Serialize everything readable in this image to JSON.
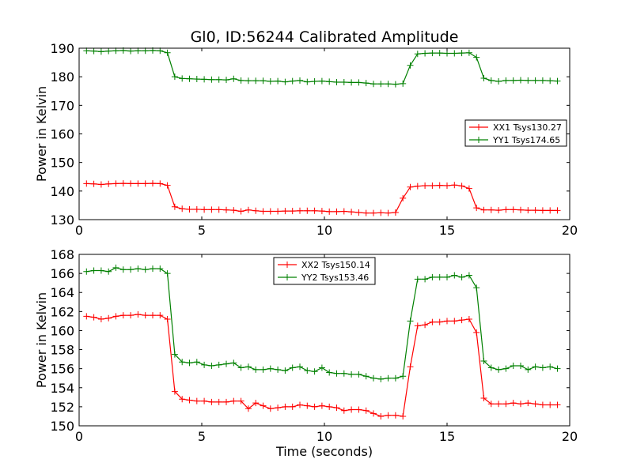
{
  "chart_data": [
    {
      "type": "line",
      "title": "Gl0, ID:56244 Calibrated Amplitude",
      "xlabel": "",
      "ylabel": "Power in Kelvin",
      "xlim": [
        0,
        20
      ],
      "ylim": [
        130,
        190
      ],
      "xticks": [
        0,
        5,
        10,
        15,
        20
      ],
      "yticks": [
        130,
        140,
        150,
        160,
        170,
        180,
        190
      ],
      "grid": false,
      "legend_position": "center-right",
      "series": [
        {
          "name": "XX1 Tsys130.27",
          "color": "#ff0000",
          "marker": "+",
          "x": [
            0.3,
            0.6,
            0.9,
            1.2,
            1.5,
            1.8,
            2.1,
            2.4,
            2.7,
            3.0,
            3.3,
            3.6,
            3.9,
            4.2,
            4.5,
            4.8,
            5.1,
            5.4,
            5.7,
            6.0,
            6.3,
            6.6,
            6.9,
            7.2,
            7.5,
            7.8,
            8.1,
            8.4,
            8.7,
            9.0,
            9.3,
            9.6,
            9.9,
            10.2,
            10.5,
            10.8,
            11.1,
            11.4,
            11.7,
            12.0,
            12.3,
            12.6,
            12.9,
            13.2,
            13.5,
            13.8,
            14.1,
            14.4,
            14.7,
            15.0,
            15.3,
            15.6,
            15.9,
            16.2,
            16.5,
            16.8,
            17.1,
            17.4,
            17.7,
            18.0,
            18.3,
            18.6,
            18.9,
            19.2,
            19.5
          ],
          "y": [
            142.6,
            142.5,
            142.3,
            142.5,
            142.6,
            142.7,
            142.6,
            142.6,
            142.6,
            142.7,
            142.6,
            142.0,
            134.5,
            133.8,
            133.6,
            133.6,
            133.5,
            133.5,
            133.5,
            133.4,
            133.3,
            132.9,
            133.4,
            133.1,
            132.9,
            132.9,
            132.9,
            133.0,
            133.0,
            133.1,
            133.1,
            133.1,
            133.0,
            132.8,
            132.8,
            132.9,
            132.7,
            132.5,
            132.3,
            132.3,
            132.4,
            132.3,
            132.5,
            137.5,
            141.4,
            141.7,
            141.9,
            141.9,
            142.0,
            141.9,
            142.1,
            141.8,
            140.9,
            134.1,
            133.4,
            133.4,
            133.3,
            133.5,
            133.5,
            133.4,
            133.3,
            133.3,
            133.2,
            133.2,
            133.2
          ]
        },
        {
          "name": "YY1 Tsys174.65",
          "color": "#008000",
          "marker": "+",
          "x": [
            0.3,
            0.6,
            0.9,
            1.2,
            1.5,
            1.8,
            2.1,
            2.4,
            2.7,
            3.0,
            3.3,
            3.6,
            3.9,
            4.2,
            4.5,
            4.8,
            5.1,
            5.4,
            5.7,
            6.0,
            6.3,
            6.6,
            6.9,
            7.2,
            7.5,
            7.8,
            8.1,
            8.4,
            8.7,
            9.0,
            9.3,
            9.6,
            9.9,
            10.2,
            10.5,
            10.8,
            11.1,
            11.4,
            11.7,
            12.0,
            12.3,
            12.6,
            12.9,
            13.2,
            13.5,
            13.8,
            14.1,
            14.4,
            14.7,
            15.0,
            15.3,
            15.6,
            15.9,
            16.2,
            16.5,
            16.8,
            17.1,
            17.4,
            17.7,
            18.0,
            18.3,
            18.6,
            18.9,
            19.2,
            19.5
          ],
          "y": [
            189.1,
            189.0,
            188.8,
            189.0,
            189.1,
            189.2,
            189.0,
            189.1,
            189.1,
            189.2,
            189.1,
            188.4,
            180.0,
            179.4,
            179.3,
            179.2,
            179.1,
            179.0,
            179.0,
            178.9,
            179.3,
            178.7,
            178.6,
            178.6,
            178.6,
            178.4,
            178.5,
            178.2,
            178.5,
            178.7,
            178.2,
            178.4,
            178.5,
            178.3,
            178.1,
            178.1,
            178.0,
            178.0,
            177.8,
            177.5,
            177.5,
            177.5,
            177.4,
            177.6,
            184.0,
            188.0,
            188.2,
            188.3,
            188.3,
            188.2,
            188.2,
            188.3,
            188.4,
            186.8,
            179.5,
            178.7,
            178.4,
            178.7,
            178.7,
            178.8,
            178.7,
            178.7,
            178.7,
            178.6,
            178.5
          ]
        }
      ]
    },
    {
      "type": "line",
      "title": "",
      "xlabel": "Time (seconds)",
      "ylabel": "Power in Kelvin",
      "xlim": [
        0,
        20
      ],
      "ylim": [
        150,
        168
      ],
      "xticks": [
        0,
        5,
        10,
        15,
        20
      ],
      "yticks": [
        150,
        152,
        154,
        156,
        158,
        160,
        162,
        164,
        166,
        168
      ],
      "grid": false,
      "legend_position": "top-center",
      "series": [
        {
          "name": "XX2 Tsys150.14",
          "color": "#ff0000",
          "marker": "+",
          "x": [
            0.3,
            0.6,
            0.9,
            1.2,
            1.5,
            1.8,
            2.1,
            2.4,
            2.7,
            3.0,
            3.3,
            3.6,
            3.9,
            4.2,
            4.5,
            4.8,
            5.1,
            5.4,
            5.7,
            6.0,
            6.3,
            6.6,
            6.9,
            7.2,
            7.5,
            7.8,
            8.1,
            8.4,
            8.7,
            9.0,
            9.3,
            9.6,
            9.9,
            10.2,
            10.5,
            10.8,
            11.1,
            11.4,
            11.7,
            12.0,
            12.3,
            12.6,
            12.9,
            13.2,
            13.5,
            13.8,
            14.1,
            14.4,
            14.7,
            15.0,
            15.3,
            15.6,
            15.9,
            16.2,
            16.5,
            16.8,
            17.1,
            17.4,
            17.7,
            18.0,
            18.3,
            18.6,
            18.9,
            19.2,
            19.5
          ],
          "y": [
            161.5,
            161.4,
            161.2,
            161.3,
            161.5,
            161.6,
            161.6,
            161.7,
            161.6,
            161.6,
            161.6,
            161.2,
            153.6,
            152.8,
            152.7,
            152.6,
            152.6,
            152.5,
            152.5,
            152.5,
            152.6,
            152.6,
            151.8,
            152.4,
            152.1,
            151.8,
            151.9,
            152.0,
            152.0,
            152.2,
            152.1,
            152.0,
            152.1,
            152.0,
            151.9,
            151.6,
            151.7,
            151.7,
            151.6,
            151.3,
            151.0,
            151.1,
            151.1,
            151.0,
            156.2,
            160.5,
            160.6,
            160.9,
            160.9,
            161.0,
            161.0,
            161.1,
            161.2,
            159.8,
            152.9,
            152.3,
            152.3,
            152.3,
            152.4,
            152.3,
            152.4,
            152.3,
            152.2,
            152.2,
            152.2
          ]
        },
        {
          "name": "YY2 Tsys153.46",
          "color": "#008000",
          "marker": "+",
          "x": [
            0.3,
            0.6,
            0.9,
            1.2,
            1.5,
            1.8,
            2.1,
            2.4,
            2.7,
            3.0,
            3.3,
            3.6,
            3.9,
            4.2,
            4.5,
            4.8,
            5.1,
            5.4,
            5.7,
            6.0,
            6.3,
            6.6,
            6.9,
            7.2,
            7.5,
            7.8,
            8.1,
            8.4,
            8.7,
            9.0,
            9.3,
            9.6,
            9.9,
            10.2,
            10.5,
            10.8,
            11.1,
            11.4,
            11.7,
            12.0,
            12.3,
            12.6,
            12.9,
            13.2,
            13.5,
            13.8,
            14.1,
            14.4,
            14.7,
            15.0,
            15.3,
            15.6,
            15.9,
            16.2,
            16.5,
            16.8,
            17.1,
            17.4,
            17.7,
            18.0,
            18.3,
            18.6,
            18.9,
            19.2,
            19.5
          ],
          "y": [
            166.2,
            166.3,
            166.3,
            166.2,
            166.6,
            166.4,
            166.4,
            166.5,
            166.4,
            166.5,
            166.5,
            166.0,
            157.5,
            156.7,
            156.6,
            156.7,
            156.4,
            156.3,
            156.4,
            156.5,
            156.6,
            156.1,
            156.2,
            155.9,
            155.9,
            156.0,
            155.9,
            155.8,
            156.1,
            156.2,
            155.8,
            155.7,
            156.1,
            155.6,
            155.5,
            155.5,
            155.4,
            155.4,
            155.2,
            155.0,
            154.9,
            155.0,
            155.0,
            155.2,
            161.0,
            165.4,
            165.4,
            165.6,
            165.6,
            165.6,
            165.8,
            165.6,
            165.8,
            164.5,
            156.8,
            156.1,
            155.9,
            156.0,
            156.3,
            156.3,
            155.9,
            156.2,
            156.1,
            156.2,
            156.0
          ]
        }
      ]
    }
  ]
}
